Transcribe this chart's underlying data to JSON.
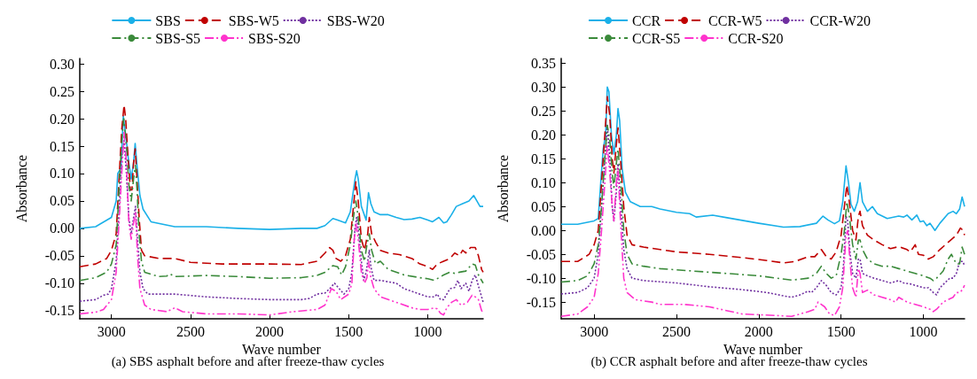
{
  "chart_data": [
    {
      "type": "line",
      "title": "(a) SBS asphalt before and after freeze-thaw cycles",
      "xlabel": "Wave number",
      "ylabel": "Absorbance",
      "xlim": [
        3200,
        650
      ],
      "xticks": [
        3000,
        2500,
        2000,
        1500,
        1000
      ],
      "ylim": [
        -0.165,
        0.31
      ],
      "yticks": [
        {
          "value": -0.15,
          "label": "-0.15"
        },
        {
          "value": -0.1,
          "label": "-0.10"
        },
        {
          "value": -0.05,
          "label": "-0.05"
        },
        {
          "value": 0,
          "label": "0.00"
        },
        {
          "value": 0.05,
          "label": "0.05"
        },
        {
          "value": 0.1,
          "label": "0.10"
        },
        {
          "value": 0.15,
          "label": "0.15"
        },
        {
          "value": 0.2,
          "label": "0.20"
        },
        {
          "value": 0.25,
          "label": "0.25"
        },
        {
          "value": 0.3,
          "label": "0.30"
        }
      ],
      "grid": false,
      "legend": "top",
      "marker": "none",
      "series": [
        {
          "name": "SBS",
          "color": "#1ab0e8",
          "line_style": "solid",
          "x": [
            3200,
            3100,
            3000,
            2970,
            2960,
            2940,
            2925,
            2910,
            2890,
            2875,
            2860,
            2850,
            2840,
            2820,
            2800,
            2750,
            2600,
            2400,
            2200,
            2000,
            1800,
            1700,
            1650,
            1600,
            1570,
            1520,
            1490,
            1460,
            1450,
            1440,
            1420,
            1390,
            1375,
            1360,
            1340,
            1300,
            1250,
            1200,
            1150,
            1100,
            1050,
            1000,
            970,
            930,
            900,
            880,
            850,
            820,
            780,
            740,
            710,
            690,
            670,
            650
          ],
          "values": [
            0.0,
            0.003,
            0.02,
            0.05,
            0.1,
            0.11,
            0.205,
            0.17,
            0.12,
            0.09,
            0.12,
            0.155,
            0.12,
            0.06,
            0.035,
            0.012,
            0.003,
            0.003,
            0.0,
            -0.002,
            0.0,
            0.0,
            0.005,
            0.018,
            0.015,
            0.01,
            0.03,
            0.09,
            0.105,
            0.09,
            0.04,
            0.015,
            0.065,
            0.045,
            0.03,
            0.025,
            0.025,
            0.02,
            0.016,
            0.017,
            0.02,
            0.015,
            0.012,
            0.02,
            0.01,
            0.012,
            0.025,
            0.04,
            0.045,
            0.05,
            0.06,
            0.05,
            0.04,
            0.04
          ]
        },
        {
          "name": "SBS-W5",
          "color": "#c00000",
          "line_style": "dashed",
          "x": [
            3200,
            3100,
            3030,
            3000,
            2970,
            2950,
            2935,
            2920,
            2910,
            2895,
            2880,
            2870,
            2860,
            2850,
            2840,
            2825,
            2810,
            2790,
            2700,
            2600,
            2500,
            2300,
            2000,
            1800,
            1700,
            1650,
            1620,
            1600,
            1580,
            1550,
            1520,
            1490,
            1470,
            1455,
            1440,
            1420,
            1400,
            1380,
            1370,
            1355,
            1330,
            1300,
            1250,
            1180,
            1100,
            1050,
            1000,
            970,
            940,
            900,
            860,
            830,
            800,
            780,
            760,
            730,
            700,
            680,
            660,
            650
          ],
          "values": [
            -0.07,
            -0.065,
            -0.055,
            -0.04,
            -0.01,
            0.1,
            0.18,
            0.225,
            0.2,
            0.13,
            0.07,
            0.07,
            0.12,
            0.145,
            0.1,
            0.02,
            -0.04,
            -0.05,
            -0.055,
            -0.055,
            -0.062,
            -0.065,
            -0.065,
            -0.066,
            -0.06,
            -0.045,
            -0.035,
            -0.04,
            -0.055,
            -0.06,
            -0.05,
            -0.02,
            0.04,
            0.085,
            0.05,
            -0.02,
            -0.04,
            -0.01,
            0.02,
            -0.01,
            -0.025,
            -0.04,
            -0.045,
            -0.048,
            -0.055,
            -0.065,
            -0.07,
            -0.075,
            -0.065,
            -0.06,
            -0.055,
            -0.045,
            -0.05,
            -0.04,
            -0.045,
            -0.035,
            -0.035,
            -0.05,
            -0.075,
            -0.08
          ]
        },
        {
          "name": "SBS-W20",
          "color": "#7030a0",
          "line_style": "dotted",
          "x": [
            3200,
            3100,
            3050,
            3020,
            3000,
            2970,
            2950,
            2935,
            2920,
            2905,
            2890,
            2875,
            2860,
            2848,
            2835,
            2820,
            2800,
            2770,
            2600,
            2400,
            2200,
            2000,
            1800,
            1750,
            1700,
            1650,
            1620,
            1590,
            1560,
            1530,
            1500,
            1480,
            1460,
            1450,
            1440,
            1420,
            1405,
            1390,
            1370,
            1360,
            1340,
            1300,
            1200,
            1150,
            1100,
            1050,
            1000,
            960,
            940,
            920,
            900,
            880,
            860,
            830,
            810,
            790,
            760,
            740,
            720,
            700,
            680,
            660,
            650
          ],
          "values": [
            -0.133,
            -0.13,
            -0.122,
            -0.12,
            -0.11,
            -0.06,
            0.04,
            0.13,
            0.16,
            0.1,
            0.02,
            -0.01,
            0.02,
            0.04,
            -0.02,
            -0.08,
            -0.11,
            -0.12,
            -0.12,
            -0.125,
            -0.128,
            -0.13,
            -0.13,
            -0.128,
            -0.12,
            -0.118,
            -0.11,
            -0.1,
            -0.11,
            -0.12,
            -0.11,
            -0.08,
            0.0,
            0.02,
            0.0,
            -0.06,
            -0.095,
            -0.08,
            -0.04,
            -0.07,
            -0.095,
            -0.095,
            -0.1,
            -0.11,
            -0.115,
            -0.12,
            -0.125,
            -0.125,
            -0.12,
            -0.13,
            -0.13,
            -0.12,
            -0.11,
            -0.108,
            -0.095,
            -0.11,
            -0.1,
            -0.115,
            -0.095,
            -0.085,
            -0.105,
            -0.125,
            -0.135
          ]
        },
        {
          "name": "SBS-S5",
          "color": "#3a8a3a",
          "line_style": "dashdot",
          "x": [
            3200,
            3100,
            3030,
            3000,
            2970,
            2950,
            2935,
            2922,
            2905,
            2890,
            2875,
            2860,
            2848,
            2838,
            2825,
            2810,
            2790,
            2700,
            2650,
            2630,
            2600,
            2400,
            2200,
            2000,
            1800,
            1700,
            1650,
            1600,
            1570,
            1545,
            1520,
            1490,
            1470,
            1455,
            1440,
            1420,
            1400,
            1385,
            1370,
            1355,
            1330,
            1300,
            1250,
            1150,
            1050,
            1000,
            960,
            930,
            900,
            860,
            830,
            800,
            760,
            720,
            700,
            680,
            650
          ],
          "values": [
            -0.095,
            -0.09,
            -0.08,
            -0.065,
            -0.03,
            0.08,
            0.16,
            0.2,
            0.15,
            0.08,
            0.05,
            0.09,
            0.115,
            0.07,
            -0.01,
            -0.06,
            -0.08,
            -0.088,
            -0.087,
            -0.083,
            -0.088,
            -0.086,
            -0.088,
            -0.091,
            -0.09,
            -0.086,
            -0.08,
            -0.068,
            -0.07,
            -0.085,
            -0.07,
            -0.03,
            0.02,
            0.05,
            0.02,
            -0.04,
            -0.06,
            -0.03,
            -0.01,
            -0.04,
            -0.065,
            -0.06,
            -0.075,
            -0.085,
            -0.09,
            -0.092,
            -0.095,
            -0.09,
            -0.085,
            -0.08,
            -0.082,
            -0.08,
            -0.078,
            -0.065,
            -0.067,
            -0.085,
            -0.1
          ]
        },
        {
          "name": "SBS-S20",
          "color": "#ff33cc",
          "line_style": "dashdotdot",
          "x": [
            3200,
            3100,
            3050,
            3000,
            2970,
            2950,
            2935,
            2920,
            2905,
            2890,
            2875,
            2860,
            2848,
            2835,
            2820,
            2790,
            2750,
            2650,
            2600,
            2550,
            2400,
            2200,
            2000,
            1850,
            1700,
            1650,
            1610,
            1580,
            1550,
            1500,
            1480,
            1465,
            1455,
            1440,
            1420,
            1400,
            1385,
            1375,
            1360,
            1340,
            1300,
            1200,
            1100,
            1050,
            1000,
            960,
            940,
            920,
            900,
            880,
            850,
            820,
            790,
            770,
            750,
            720,
            700,
            680,
            660,
            650
          ],
          "values": [
            -0.156,
            -0.153,
            -0.148,
            -0.13,
            -0.08,
            0.02,
            0.1,
            0.175,
            0.12,
            0.01,
            -0.02,
            0.01,
            0.03,
            -0.05,
            -0.11,
            -0.14,
            -0.148,
            -0.152,
            -0.145,
            -0.152,
            -0.156,
            -0.156,
            -0.158,
            -0.152,
            -0.148,
            -0.14,
            -0.11,
            -0.115,
            -0.13,
            -0.12,
            -0.1,
            -0.02,
            0.01,
            -0.02,
            -0.08,
            -0.1,
            -0.09,
            -0.06,
            -0.09,
            -0.11,
            -0.125,
            -0.135,
            -0.145,
            -0.148,
            -0.148,
            -0.145,
            -0.147,
            -0.155,
            -0.158,
            -0.145,
            -0.135,
            -0.13,
            -0.14,
            -0.138,
            -0.135,
            -0.122,
            -0.125,
            -0.13,
            -0.15,
            -0.155
          ]
        }
      ]
    },
    {
      "type": "line",
      "title": "(b) CCR asphalt before and after freeze-thaw cycles",
      "xlabel": "Wave number",
      "ylabel": "Absorbance",
      "xlim": [
        3200,
        750
      ],
      "xticks": [
        3000,
        2500,
        2000,
        1500,
        1000
      ],
      "ylim": [
        -0.185,
        0.36
      ],
      "yticks": [
        {
          "value": -0.15,
          "label": "-0.15"
        },
        {
          "value": -0.1,
          "label": "-0.10"
        },
        {
          "value": -0.05,
          "label": "-0.05"
        },
        {
          "value": 0,
          "label": "0.00"
        },
        {
          "value": 0.05,
          "label": "0.05"
        },
        {
          "value": 0.1,
          "label": "0.10"
        },
        {
          "value": 0.15,
          "label": "0.15"
        },
        {
          "value": 0.2,
          "label": "0.20"
        },
        {
          "value": 0.25,
          "label": "0.25"
        },
        {
          "value": 0.3,
          "label": "0.30"
        },
        {
          "value": 0.35,
          "label": "0.35"
        }
      ],
      "grid": false,
      "legend": "top",
      "marker": "none",
      "series": [
        {
          "name": "CCR",
          "color": "#1ab0e8",
          "line_style": "solid",
          "x": [
            3200,
            3100,
            3000,
            2975,
            2960,
            2945,
            2930,
            2920,
            2910,
            2895,
            2880,
            2865,
            2855,
            2845,
            2830,
            2810,
            2780,
            2720,
            2650,
            2600,
            2500,
            2420,
            2380,
            2280,
            2200,
            2000,
            1850,
            1750,
            1650,
            1610,
            1580,
            1540,
            1510,
            1490,
            1470,
            1455,
            1440,
            1420,
            1400,
            1385,
            1370,
            1340,
            1310,
            1280,
            1220,
            1150,
            1120,
            1100,
            1070,
            1040,
            1020,
            1000,
            980,
            960,
            930,
            900,
            850,
            820,
            800,
            780,
            765,
            750
          ],
          "values": [
            0.013,
            0.013,
            0.02,
            0.025,
            0.1,
            0.17,
            0.2,
            0.3,
            0.29,
            0.2,
            0.16,
            0.2,
            0.255,
            0.23,
            0.13,
            0.08,
            0.06,
            0.05,
            0.05,
            0.045,
            0.038,
            0.035,
            0.028,
            0.032,
            0.027,
            0.015,
            0.007,
            0.008,
            0.015,
            0.03,
            0.022,
            0.014,
            0.02,
            0.06,
            0.135,
            0.1,
            0.055,
            0.04,
            0.06,
            0.1,
            0.06,
            0.04,
            0.05,
            0.035,
            0.025,
            0.03,
            0.028,
            0.032,
            0.022,
            0.032,
            0.018,
            0.02,
            0.01,
            0.015,
            0.0,
            0.015,
            0.035,
            0.04,
            0.035,
            0.045,
            0.07,
            0.05
          ]
        },
        {
          "name": "CCR-W5",
          "color": "#c00000",
          "line_style": "dashed",
          "x": [
            3200,
            3100,
            3030,
            3000,
            2975,
            2955,
            2935,
            2920,
            2905,
            2890,
            2880,
            2865,
            2855,
            2840,
            2820,
            2800,
            2770,
            2700,
            2500,
            2300,
            2100,
            1950,
            1850,
            1780,
            1700,
            1660,
            1620,
            1590,
            1560,
            1530,
            1500,
            1480,
            1465,
            1450,
            1430,
            1410,
            1395,
            1385,
            1370,
            1340,
            1300,
            1250,
            1200,
            1150,
            1100,
            1080,
            1050,
            1030,
            1000,
            970,
            940,
            900,
            850,
            800,
            775,
            760,
            750
          ],
          "values": [
            -0.065,
            -0.065,
            -0.05,
            -0.03,
            0.0,
            0.1,
            0.2,
            0.28,
            0.24,
            0.15,
            0.12,
            0.18,
            0.215,
            0.15,
            0.05,
            -0.01,
            -0.03,
            -0.035,
            -0.045,
            -0.05,
            -0.057,
            -0.063,
            -0.068,
            -0.065,
            -0.055,
            -0.055,
            -0.04,
            -0.055,
            -0.06,
            -0.045,
            -0.01,
            0.05,
            0.095,
            0.06,
            0.0,
            -0.02,
            0.03,
            0.04,
            0.01,
            -0.01,
            -0.02,
            -0.03,
            -0.038,
            -0.034,
            -0.04,
            -0.045,
            -0.03,
            -0.05,
            -0.052,
            -0.06,
            -0.055,
            -0.04,
            -0.025,
            -0.01,
            0.005,
            0.0,
            -0.01
          ]
        },
        {
          "name": "CCR-W20",
          "color": "#7030a0",
          "line_style": "dotted",
          "x": [
            3200,
            3100,
            3040,
            3000,
            2975,
            2955,
            2935,
            2920,
            2905,
            2890,
            2880,
            2865,
            2855,
            2840,
            2820,
            2800,
            2770,
            2700,
            2500,
            2300,
            2100,
            1950,
            1850,
            1800,
            1750,
            1700,
            1680,
            1650,
            1620,
            1590,
            1560,
            1530,
            1500,
            1485,
            1470,
            1460,
            1445,
            1430,
            1410,
            1395,
            1385,
            1370,
            1340,
            1300,
            1250,
            1200,
            1150,
            1120,
            1080,
            1050,
            1000,
            970,
            940,
            920,
            900,
            870,
            840,
            820,
            800,
            780,
            760,
            750
          ],
          "values": [
            -0.133,
            -0.13,
            -0.12,
            -0.1,
            -0.05,
            0.05,
            0.15,
            0.22,
            0.15,
            0.05,
            0.02,
            0.08,
            0.14,
            0.06,
            -0.04,
            -0.08,
            -0.1,
            -0.105,
            -0.11,
            -0.118,
            -0.124,
            -0.13,
            -0.137,
            -0.14,
            -0.135,
            -0.127,
            -0.13,
            -0.12,
            -0.105,
            -0.115,
            -0.13,
            -0.135,
            -0.12,
            -0.07,
            0.03,
            0.02,
            -0.05,
            -0.09,
            -0.1,
            -0.06,
            -0.06,
            -0.09,
            -0.095,
            -0.1,
            -0.105,
            -0.11,
            -0.105,
            -0.11,
            -0.112,
            -0.115,
            -0.12,
            -0.12,
            -0.13,
            -0.135,
            -0.12,
            -0.11,
            -0.1,
            -0.1,
            -0.09,
            -0.065,
            -0.065,
            -0.075
          ]
        },
        {
          "name": "CCR-S5",
          "color": "#3a8a3a",
          "line_style": "dashdot",
          "x": [
            3200,
            3100,
            3040,
            3000,
            2975,
            2955,
            2935,
            2920,
            2905,
            2890,
            2880,
            2865,
            2855,
            2840,
            2820,
            2800,
            2770,
            2700,
            2600,
            2400,
            2200,
            2000,
            1800,
            1700,
            1650,
            1620,
            1590,
            1560,
            1530,
            1500,
            1480,
            1465,
            1450,
            1430,
            1410,
            1395,
            1385,
            1370,
            1340,
            1300,
            1250,
            1200,
            1150,
            1100,
            1050,
            1000,
            960,
            940,
            920,
            880,
            850,
            830,
            800,
            780,
            765,
            750
          ],
          "values": [
            -0.108,
            -0.105,
            -0.095,
            -0.07,
            -0.03,
            0.05,
            0.15,
            0.22,
            0.19,
            0.12,
            0.09,
            0.14,
            0.17,
            0.11,
            0.0,
            -0.05,
            -0.07,
            -0.075,
            -0.08,
            -0.085,
            -0.09,
            -0.095,
            -0.104,
            -0.1,
            -0.09,
            -0.075,
            -0.09,
            -0.1,
            -0.095,
            -0.05,
            0.0,
            0.06,
            0.03,
            -0.03,
            -0.06,
            -0.02,
            -0.02,
            -0.04,
            -0.06,
            -0.07,
            -0.075,
            -0.075,
            -0.08,
            -0.085,
            -0.09,
            -0.095,
            -0.1,
            -0.105,
            -0.1,
            -0.085,
            -0.06,
            -0.05,
            -0.07,
            -0.07,
            -0.035,
            -0.05
          ]
        },
        {
          "name": "CCR-S20",
          "color": "#ff33cc",
          "line_style": "dashdotdot",
          "x": [
            3200,
            3100,
            3040,
            3000,
            2975,
            2955,
            2935,
            2920,
            2905,
            2890,
            2880,
            2865,
            2855,
            2840,
            2820,
            2800,
            2750,
            2650,
            2600,
            2450,
            2300,
            2100,
            1900,
            1800,
            1700,
            1660,
            1640,
            1600,
            1570,
            1540,
            1510,
            1490,
            1470,
            1460,
            1445,
            1430,
            1410,
            1395,
            1385,
            1370,
            1340,
            1300,
            1250,
            1200,
            1170,
            1150,
            1100,
            1050,
            1000,
            960,
            940,
            920,
            880,
            850,
            820,
            800,
            780,
            765,
            750
          ],
          "values": [
            -0.18,
            -0.175,
            -0.16,
            -0.14,
            -0.09,
            0.0,
            0.1,
            0.18,
            0.12,
            0.05,
            0.02,
            0.1,
            0.13,
            0.02,
            -0.1,
            -0.13,
            -0.145,
            -0.15,
            -0.155,
            -0.155,
            -0.16,
            -0.175,
            -0.178,
            -0.18,
            -0.17,
            -0.165,
            -0.15,
            -0.16,
            -0.175,
            -0.178,
            -0.16,
            -0.12,
            -0.01,
            0.0,
            -0.07,
            -0.12,
            -0.14,
            -0.08,
            -0.09,
            -0.13,
            -0.125,
            -0.135,
            -0.14,
            -0.145,
            -0.15,
            -0.14,
            -0.15,
            -0.155,
            -0.16,
            -0.165,
            -0.17,
            -0.165,
            -0.15,
            -0.145,
            -0.14,
            -0.13,
            -0.13,
            -0.125,
            -0.115
          ]
        }
      ]
    }
  ]
}
